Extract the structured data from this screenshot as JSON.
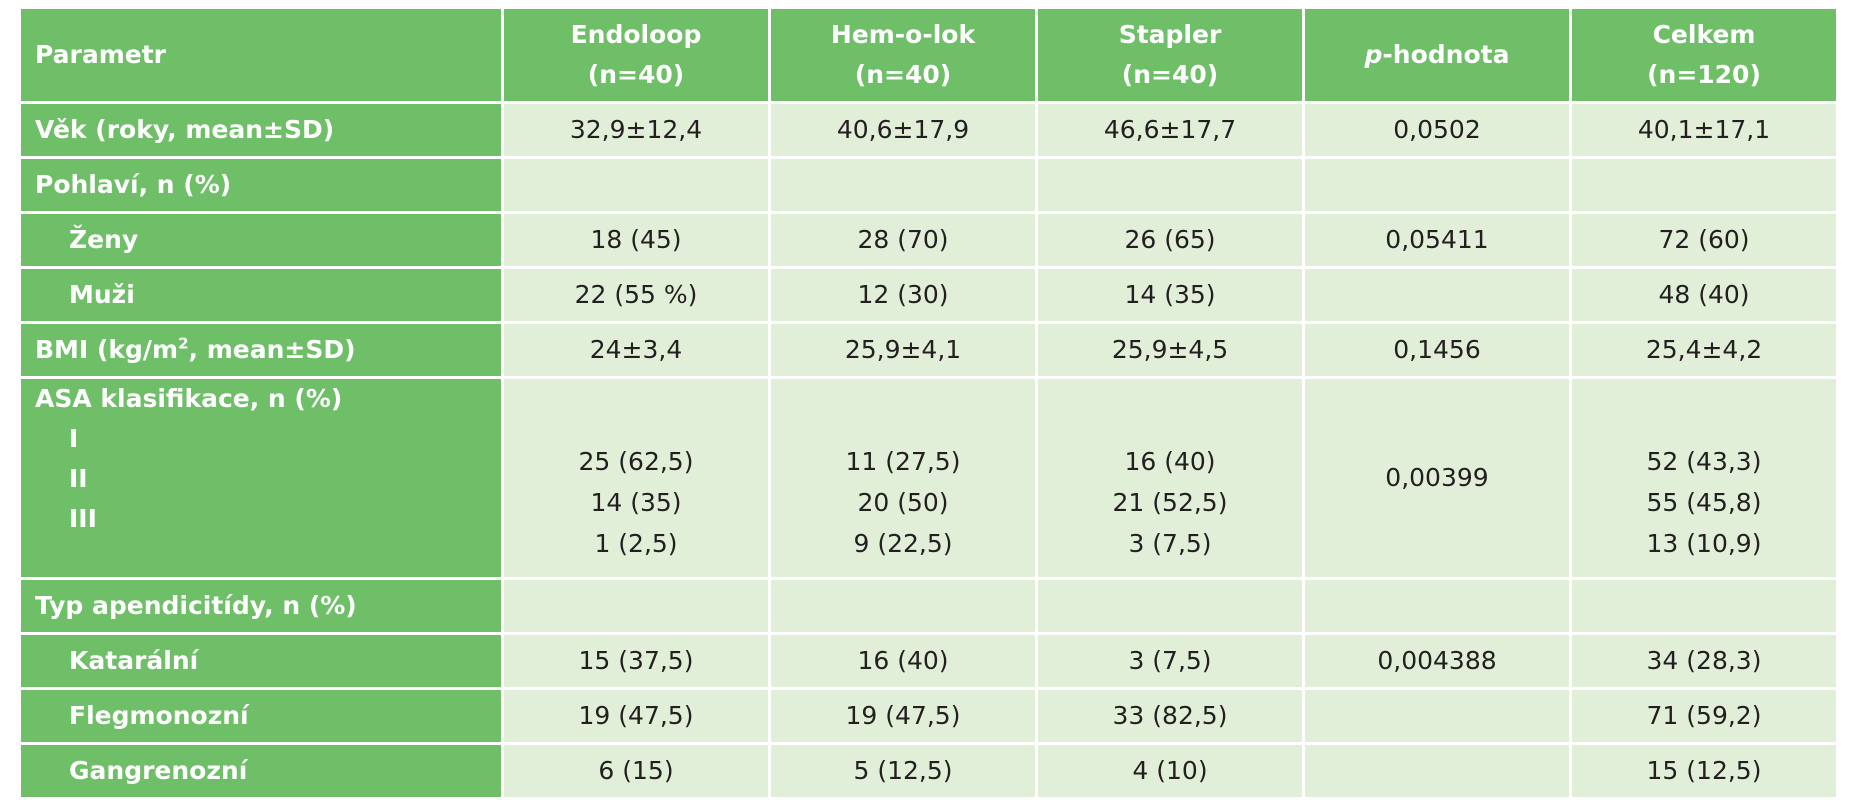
{
  "header": {
    "parameter": "Parametr",
    "columns": [
      {
        "name": "Endoloop",
        "n": "(n=40)"
      },
      {
        "name": "Hem-o-lok",
        "n": "(n=40)"
      },
      {
        "name": "Stapler",
        "n": "(n=40)"
      },
      {
        "name_italic": "p",
        "name_rest": "-hodnota",
        "n": ""
      },
      {
        "name": "Celkem",
        "n": "(n=120)"
      }
    ]
  },
  "rows": {
    "age": {
      "label": "Věk (roky, mean±SD)",
      "values": [
        "32,9±12,4",
        "40,6±17,9",
        "46,6±17,7",
        "0,0502",
        "40,1±17,1"
      ]
    },
    "sex": {
      "label": "Pohlaví, n (%)"
    },
    "women": {
      "label": "Ženy",
      "values": [
        "18 (45)",
        "28 (70)",
        "26 (65)",
        "0,05411",
        "72 (60)"
      ]
    },
    "men": {
      "label": "Muži",
      "values": [
        "22 (55 %)",
        "12 (30)",
        "14 (35)",
        "",
        "48 (40)"
      ]
    },
    "bmi": {
      "label_main": "BMI (kg/m",
      "label_sup": "2",
      "label_rest": ", mean±SD)",
      "values": [
        "24±3,4",
        "25,9±4,1",
        "25,9±4,5",
        "0,1456",
        "25,4±4,2"
      ]
    },
    "asa": {
      "label": "ASA klasifikace, n (%)",
      "levels": [
        "I",
        "II",
        "III"
      ],
      "endoloop": [
        "25 (62,5)",
        "14 (35)",
        "1 (2,5)"
      ],
      "hemolok": [
        "11 (27,5)",
        "20 (50)",
        "9 (22,5)"
      ],
      "stapler": [
        "16 (40)",
        "21 (52,5)",
        "3 (7,5)"
      ],
      "p": "0,00399",
      "total": [
        "52 (43,3)",
        "55 (45,8)",
        "13 (10,9)"
      ]
    },
    "type": {
      "label": "Typ apendicitídy, n (%)"
    },
    "catarrhal": {
      "label": "Katarální",
      "values": [
        "15 (37,5)",
        "16 (40)",
        "3 (7,5)",
        "0,004388",
        "34 (28,3)"
      ]
    },
    "phlegmonous": {
      "label": "Flegmonozní",
      "values": [
        "19 (47,5)",
        "19 (47,5)",
        "33 (82,5)",
        "",
        "71 (59,2)"
      ]
    },
    "gangrenous": {
      "label": "Gangrenozní",
      "values": [
        "6 (15)",
        "5 (12,5)",
        "4 (10)",
        "",
        "15 (12,5)"
      ]
    }
  },
  "colors": {
    "header_green": "#6ebf67",
    "cell_light_green": "#e1efd9",
    "text": "#231f20"
  }
}
